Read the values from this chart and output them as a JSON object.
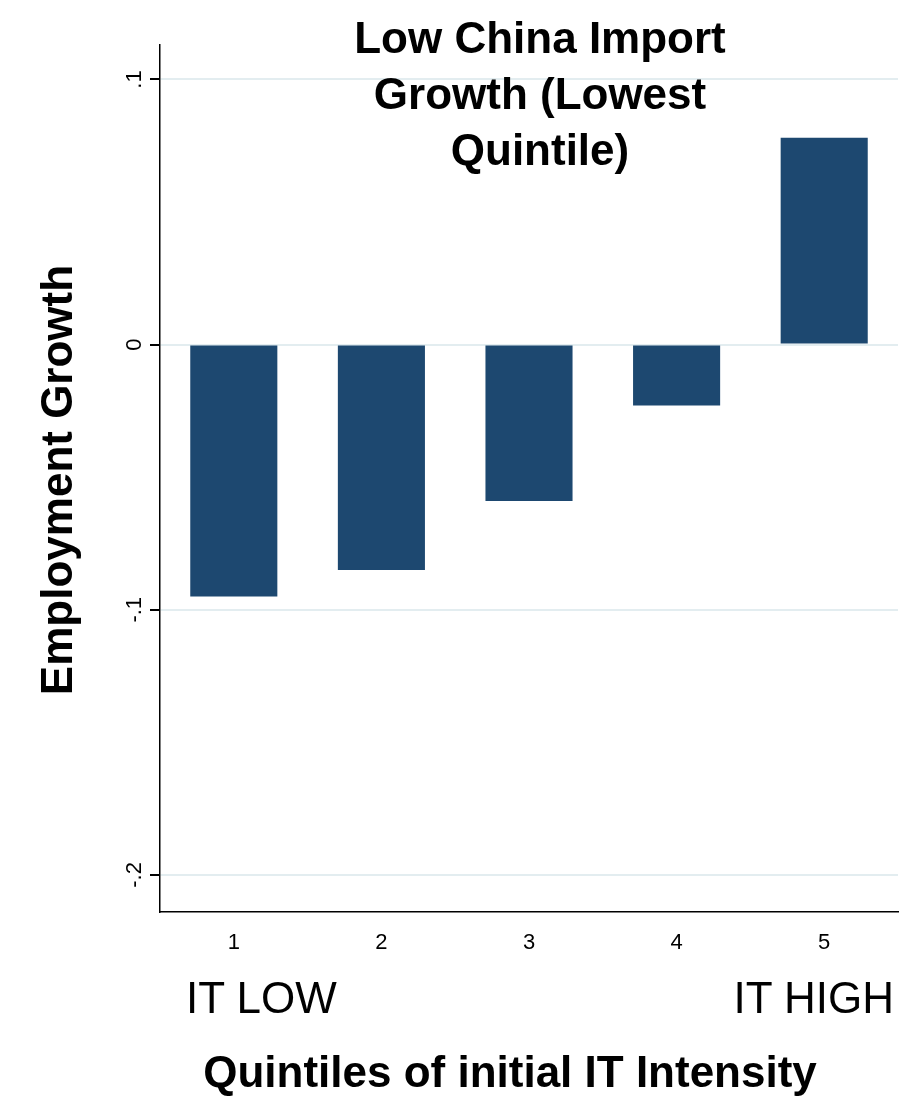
{
  "chart_data": {
    "type": "bar",
    "title": "Low China Import Growth (Lowest Quintile)",
    "xlabel": "Quintiles of initial IT Intensity",
    "ylabel": "Employment Growth",
    "categories": [
      "1",
      "2",
      "3",
      "4",
      "5"
    ],
    "values": [
      -0.095,
      -0.085,
      -0.059,
      -0.023,
      0.078
    ],
    "color": "#1d4870",
    "ylim": [
      -0.214,
      0.113
    ],
    "yticks": [
      {
        "value": -0.2,
        "label": "-.2"
      },
      {
        "value": -0.1,
        "label": "-.1"
      },
      {
        "value": 0,
        "label": "0"
      },
      {
        "value": 0.1,
        "label": ".1"
      }
    ],
    "grid": "y",
    "legend": false,
    "annotations": [
      "IT LOW",
      "IT HIGH"
    ]
  }
}
